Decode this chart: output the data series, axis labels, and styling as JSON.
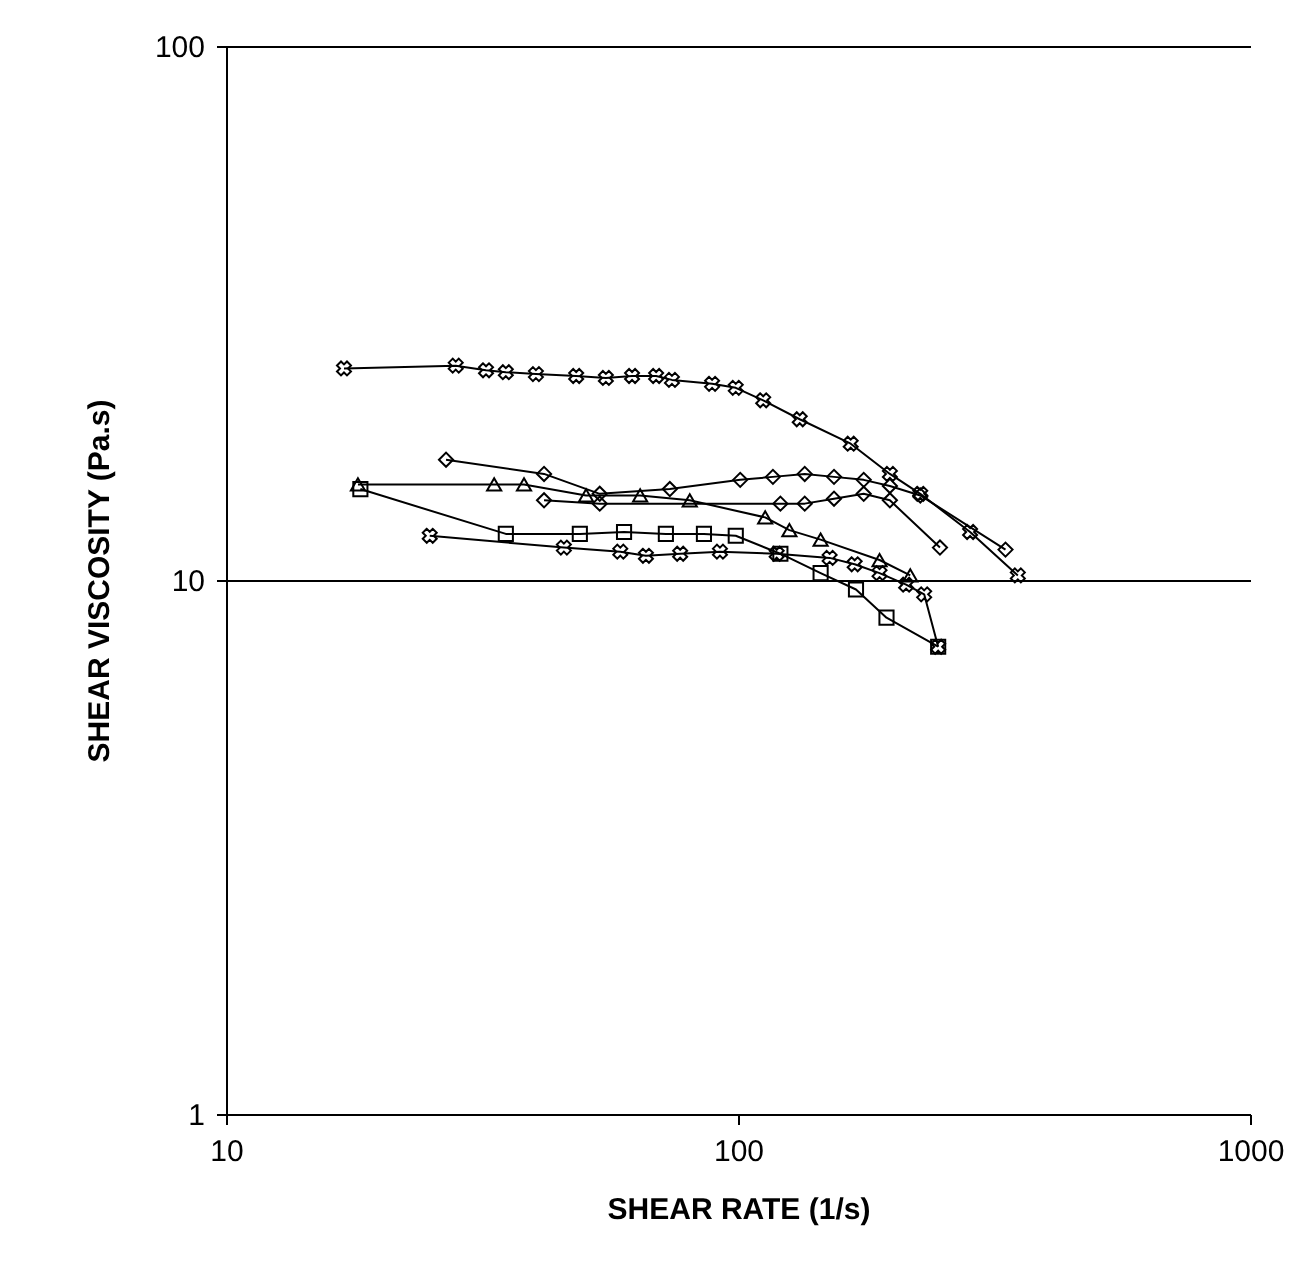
{
  "chart_data": {
    "type": "line",
    "xlabel": "SHEAR RATE (1/s)",
    "ylabel": "SHEAR VISCOSITY (Pa.s)",
    "log": "xy",
    "xlim": [
      10,
      1000
    ],
    "xticks": [
      10,
      100,
      1000
    ],
    "ylim": [
      1,
      100
    ],
    "yticks": [
      1,
      10,
      100
    ],
    "grid": "y",
    "line_style": "solid",
    "series": [
      {
        "color": "#000000",
        "marker": "cross",
        "x": [
          17.0,
          28.1,
          32.2,
          35.2,
          40.3,
          48.3,
          55.2,
          62.1,
          69.2,
          74.3,
          89.0,
          99,
          112,
          132,
          166,
          198,
          227,
          284,
          352
        ],
        "values": [
          24.9,
          25.2,
          24.7,
          24.5,
          24.3,
          24.1,
          23.9,
          24.1,
          24.1,
          23.7,
          23.3,
          22.9,
          21.7,
          20.0,
          18.0,
          15.8,
          14.5,
          12.3,
          10.2
        ]
      },
      {
        "color": "#000000",
        "marker": "diamond",
        "x": [
          26.9,
          41.8,
          53.7,
          73.6,
          101,
          117,
          135,
          154,
          176,
          198,
          227,
          333
        ],
        "values": [
          16.8,
          15.8,
          14.5,
          14.8,
          15.4,
          15.6,
          15.8,
          15.6,
          15.4,
          15.0,
          14.4,
          11.4
        ]
      },
      {
        "color": "#000000",
        "marker": "diamond",
        "x": [
          41.8,
          53.7,
          121,
          135,
          154,
          176,
          198,
          248
        ],
        "values": [
          14.1,
          13.9,
          13.9,
          13.9,
          14.2,
          14.5,
          14.1,
          11.5
        ]
      },
      {
        "color": "#000000",
        "marker": "triangle",
        "x": [
          18.1,
          33.4,
          38.2,
          50.5,
          64.4,
          80.5,
          113,
          126,
          145,
          189,
          217
        ],
        "values": [
          15.1,
          15.1,
          15.1,
          14.4,
          14.4,
          14.1,
          13.1,
          12.4,
          11.9,
          10.9,
          10.2
        ]
      },
      {
        "color": "#000000",
        "marker": "square",
        "x": [
          18.3,
          35.2,
          49.1,
          59.9,
          72.3,
          85.8,
          99,
          121,
          145,
          170,
          195,
          246
        ],
        "values": [
          14.8,
          12.2,
          12.2,
          12.3,
          12.2,
          12.2,
          12.1,
          11.2,
          10.3,
          9.6,
          8.5,
          7.5
        ]
      },
      {
        "color": "#000000",
        "marker": "cross",
        "x": [
          25.0,
          45.7,
          58.9,
          66.1,
          77.1,
          92.2,
          119,
          151,
          169,
          189,
          213,
          231,
          246
        ],
        "values": [
          12.1,
          11.5,
          11.3,
          11.1,
          11.2,
          11.3,
          11.2,
          11.0,
          10.7,
          10.3,
          9.8,
          9.4,
          7.5
        ]
      }
    ]
  }
}
